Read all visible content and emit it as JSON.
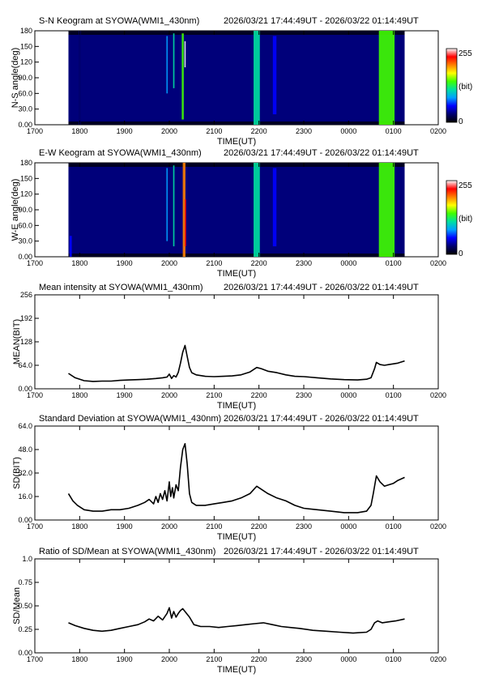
{
  "colors": {
    "line": "#000000",
    "keogram_background": "#00007a",
    "colorbar_stops": [
      "#000000",
      "#00006e",
      "#0000ff",
      "#00a0ff",
      "#00e0a0",
      "#40ff00",
      "#ffff00",
      "#ff8000",
      "#ff0000",
      "#ffffff"
    ]
  },
  "chart_data": [
    {
      "type": "heatmap",
      "title": "S-N Keogram at SYOWA(WMI1_430nm)",
      "time_range": "2026/03/21 17:44:49UT - 2026/03/22 01:14:49UT",
      "xlabel": "TIME(UT)",
      "ylabel": "N-S angle(deg)",
      "x_ticks": [
        "1700",
        "1800",
        "1900",
        "2000",
        "2100",
        "2200",
        "2300",
        "0000",
        "0100",
        "0200"
      ],
      "y_ticks": [
        "0.00",
        "30.0",
        "60.0",
        "90.0",
        "120",
        "150",
        "180"
      ],
      "ylim": [
        0,
        180
      ],
      "colorbar": {
        "max_label": "255",
        "unit_label": "(bit)",
        "min_label": "0",
        "range": [
          0,
          255
        ]
      },
      "data_time_range_hours": [
        17.75,
        25.25
      ],
      "features": [
        {
          "t": 18.0,
          "width": 0.05,
          "intensity": 35,
          "ymin": 0,
          "ymax": 180
        },
        {
          "t": 19.95,
          "width": 0.03,
          "intensity": 90,
          "ymin": 60,
          "ymax": 170
        },
        {
          "t": 20.1,
          "width": 0.03,
          "intensity": 110,
          "ymin": 70,
          "ymax": 175
        },
        {
          "t": 20.3,
          "width": 0.045,
          "intensity": 150,
          "ymin": 10,
          "ymax": 175
        },
        {
          "t": 20.35,
          "width": 0.025,
          "intensity": 250,
          "ymin": 110,
          "ymax": 160
        },
        {
          "t": 21.95,
          "width": 0.14,
          "intensity": 110,
          "ymin": 0,
          "ymax": 180
        },
        {
          "t": 22.35,
          "width": 0.08,
          "intensity": 60,
          "ymin": 20,
          "ymax": 170
        },
        {
          "t": 24.85,
          "width": 0.35,
          "intensity": 130,
          "ymin": 0,
          "ymax": 180
        }
      ]
    },
    {
      "type": "heatmap",
      "title": "E-W Keogram at SYOWA(WMI1_430nm)",
      "time_range": "2026/03/21 17:44:49UT - 2026/03/22 01:14:49UT",
      "xlabel": "TIME(UT)",
      "ylabel": "W-E angle(deg)",
      "x_ticks": [
        "1700",
        "1800",
        "1900",
        "2000",
        "2100",
        "2200",
        "2300",
        "0000",
        "0100",
        "0200"
      ],
      "y_ticks": [
        "0.00",
        "30.0",
        "60.0",
        "90.0",
        "120",
        "150",
        "180"
      ],
      "ylim": [
        0,
        180
      ],
      "colorbar": {
        "max_label": "255",
        "unit_label": "(bit)",
        "min_label": "0",
        "range": [
          0,
          255
        ]
      },
      "data_time_range_hours": [
        17.75,
        25.25
      ],
      "features": [
        {
          "t": 17.8,
          "width": 0.05,
          "intensity": 70,
          "ymin": 0,
          "ymax": 40
        },
        {
          "t": 19.95,
          "width": 0.03,
          "intensity": 80,
          "ymin": 30,
          "ymax": 170
        },
        {
          "t": 20.1,
          "width": 0.03,
          "intensity": 100,
          "ymin": 20,
          "ymax": 175
        },
        {
          "t": 20.33,
          "width": 0.06,
          "intensity": 200,
          "ymin": 0,
          "ymax": 180
        },
        {
          "t": 20.36,
          "width": 0.025,
          "intensity": 235,
          "ymin": 20,
          "ymax": 110
        },
        {
          "t": 21.95,
          "width": 0.14,
          "intensity": 110,
          "ymin": 0,
          "ymax": 180
        },
        {
          "t": 22.35,
          "width": 0.08,
          "intensity": 55,
          "ymin": 20,
          "ymax": 170
        },
        {
          "t": 24.85,
          "width": 0.35,
          "intensity": 130,
          "ymin": 0,
          "ymax": 180
        }
      ]
    },
    {
      "type": "line",
      "title": "Mean intensity at SYOWA(WMI1_430nm)",
      "time_range": "2026/03/21 17:44:49UT - 2026/03/22 01:14:49UT",
      "xlabel": "TIME(UT)",
      "ylabel": "MEAN(BIT)",
      "x_ticks": [
        "1700",
        "1800",
        "1900",
        "2000",
        "2100",
        "2200",
        "2300",
        "0000",
        "0100",
        "0200"
      ],
      "y_ticks": [
        "0.00",
        "64.0",
        "128",
        "192",
        "256"
      ],
      "ylim": [
        0,
        256
      ],
      "series": [
        {
          "x": [
            17.75,
            17.9,
            18.1,
            18.3,
            18.5,
            18.7,
            18.9,
            19.1,
            19.3,
            19.5,
            19.7,
            19.85,
            19.95,
            20.0,
            20.05,
            20.1,
            20.15,
            20.2,
            20.25,
            20.3,
            20.35,
            20.4,
            20.45,
            20.5,
            20.6,
            20.8,
            21.0,
            21.2,
            21.4,
            21.6,
            21.8,
            21.95,
            22.05,
            22.2,
            22.4,
            22.6,
            22.8,
            23.0,
            23.3,
            23.6,
            23.9,
            24.2,
            24.4,
            24.5,
            24.58,
            24.62,
            24.7,
            24.8,
            24.9,
            25.0,
            25.1,
            25.25
          ],
          "y": [
            42,
            30,
            22,
            20,
            21,
            21,
            23,
            24,
            25,
            26,
            28,
            30,
            32,
            40,
            28,
            36,
            32,
            45,
            70,
            100,
            118,
            88,
            58,
            44,
            38,
            34,
            33,
            34,
            35,
            38,
            46,
            58,
            55,
            48,
            44,
            38,
            34,
            33,
            30,
            27,
            25,
            24,
            26,
            30,
            55,
            72,
            66,
            64,
            66,
            68,
            70,
            76
          ]
        }
      ]
    },
    {
      "type": "line",
      "title": "Standard Deviation at SYOWA(WMI1_430nm)",
      "time_range": "2026/03/21 17:44:49UT - 2026/03/22 01:14:49UT",
      "xlabel": "TIME(UT)",
      "ylabel": "SD(BIT)",
      "x_ticks": [
        "1700",
        "1800",
        "1900",
        "2000",
        "2100",
        "2200",
        "2300",
        "0000",
        "0100",
        "0200"
      ],
      "y_ticks": [
        "0.00",
        "16.0",
        "32.0",
        "48.0",
        "64.0"
      ],
      "ylim": [
        0,
        64
      ],
      "series": [
        {
          "x": [
            17.75,
            17.85,
            17.95,
            18.1,
            18.3,
            18.5,
            18.7,
            18.9,
            19.1,
            19.3,
            19.45,
            19.55,
            19.65,
            19.7,
            19.75,
            19.8,
            19.85,
            19.9,
            19.95,
            20.0,
            20.03,
            20.07,
            20.1,
            20.15,
            20.2,
            20.25,
            20.3,
            20.35,
            20.4,
            20.45,
            20.5,
            20.6,
            20.8,
            21.0,
            21.2,
            21.4,
            21.6,
            21.8,
            21.95,
            22.05,
            22.2,
            22.4,
            22.6,
            22.8,
            23.0,
            23.3,
            23.6,
            23.9,
            24.2,
            24.4,
            24.5,
            24.55,
            24.62,
            24.7,
            24.8,
            24.9,
            25.0,
            25.1,
            25.25
          ],
          "y": [
            18,
            13,
            10,
            7,
            6,
            6,
            7,
            7,
            8,
            10,
            12,
            14,
            11,
            16,
            12,
            18,
            14,
            20,
            13,
            26,
            16,
            22,
            15,
            24,
            20,
            36,
            48,
            52,
            38,
            18,
            12,
            10,
            10,
            11,
            12,
            13,
            15,
            18,
            23,
            21,
            18,
            15,
            13,
            10,
            8,
            7,
            6,
            5,
            5,
            6,
            10,
            18,
            30,
            26,
            23,
            24,
            25,
            27,
            29
          ]
        }
      ]
    },
    {
      "type": "line",
      "title": "Ratio of SD/Mean at SYOWA(WMI1_430nm)",
      "time_range": "2026/03/21 17:44:49UT - 2026/03/22 01:14:49UT",
      "xlabel": "TIME(UT)",
      "ylabel": "SD/Mean",
      "x_ticks": [
        "1700",
        "1800",
        "1900",
        "2000",
        "2100",
        "2200",
        "2300",
        "0000",
        "0100",
        "0200"
      ],
      "y_ticks": [
        "0.00",
        "0.25",
        "0.50",
        "0.75",
        "1.0"
      ],
      "ylim": [
        0,
        1
      ],
      "series": [
        {
          "x": [
            17.75,
            17.9,
            18.1,
            18.3,
            18.5,
            18.7,
            18.9,
            19.1,
            19.3,
            19.45,
            19.55,
            19.65,
            19.75,
            19.85,
            19.95,
            20.0,
            20.05,
            20.1,
            20.15,
            20.2,
            20.25,
            20.3,
            20.35,
            20.45,
            20.55,
            20.7,
            20.9,
            21.1,
            21.3,
            21.5,
            21.7,
            21.9,
            22.1,
            22.3,
            22.5,
            22.7,
            22.9,
            23.2,
            23.5,
            23.8,
            24.1,
            24.4,
            24.5,
            24.58,
            24.65,
            24.75,
            24.9,
            25.05,
            25.25
          ],
          "y": [
            0.32,
            0.29,
            0.26,
            0.24,
            0.23,
            0.24,
            0.26,
            0.28,
            0.3,
            0.33,
            0.36,
            0.34,
            0.39,
            0.35,
            0.42,
            0.48,
            0.37,
            0.44,
            0.38,
            0.42,
            0.45,
            0.47,
            0.44,
            0.38,
            0.3,
            0.28,
            0.28,
            0.27,
            0.28,
            0.29,
            0.3,
            0.31,
            0.32,
            0.3,
            0.28,
            0.27,
            0.26,
            0.24,
            0.23,
            0.22,
            0.21,
            0.22,
            0.25,
            0.32,
            0.34,
            0.32,
            0.33,
            0.34,
            0.36
          ]
        }
      ]
    }
  ]
}
